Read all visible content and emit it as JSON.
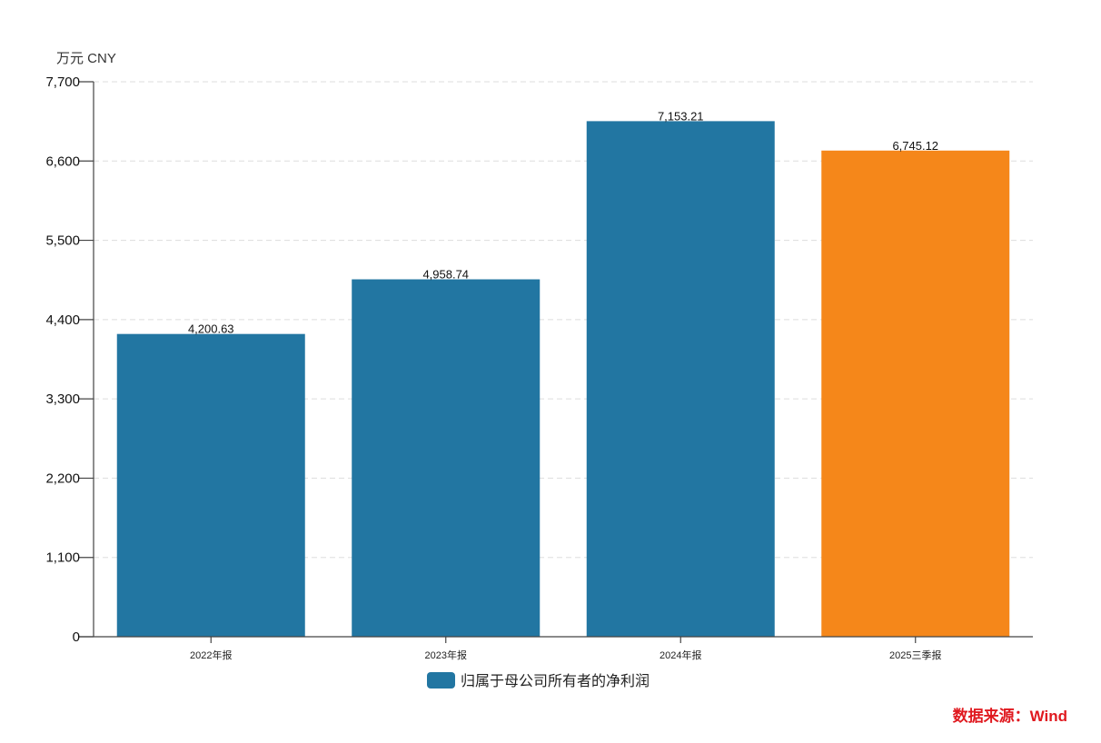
{
  "chart_data": {
    "type": "bar",
    "title": "",
    "unit_label": "万元  CNY",
    "xlabel": "",
    "ylabel": "万元 CNY",
    "categories": [
      "2022年报",
      "2023年报",
      "2024年报",
      "2025三季报"
    ],
    "series": [
      {
        "name": "归属于母公司所有者的净利润",
        "values": [
          4200.63,
          4958.74,
          7153.21,
          6745.12
        ],
        "value_labels": [
          "4,200.63",
          "4,958.74",
          "7,153.21",
          "6,745.12"
        ],
        "colors": [
          "#2276a2",
          "#2276a2",
          "#2276a2",
          "#f5871a"
        ]
      }
    ],
    "ylim": [
      0,
      7700
    ],
    "yticks": [
      0,
      1100,
      2200,
      3300,
      4400,
      5500,
      6600,
      7700
    ],
    "ytick_labels": [
      "0",
      "1,100",
      "2,200",
      "3,300",
      "4,400",
      "5,500",
      "6,600",
      "7,700"
    ],
    "grid": true,
    "legend": {
      "position": "bottom-center",
      "entries": [
        "归属于母公司所有者的净利润"
      ],
      "color": "#2276a2"
    },
    "source_note": "数据来源：Wind"
  },
  "colors": {
    "bar": "#2276a2",
    "highlight": "#f5871a",
    "grid": "#dddddd",
    "axis": "#444444",
    "source": "#e0191f"
  }
}
